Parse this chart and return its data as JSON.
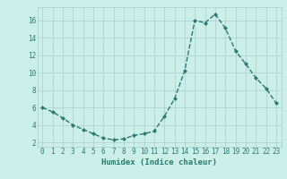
{
  "x": [
    0,
    1,
    2,
    3,
    4,
    5,
    6,
    7,
    8,
    9,
    10,
    11,
    12,
    13,
    14,
    15,
    16,
    17,
    18,
    19,
    20,
    21,
    22,
    23
  ],
  "y": [
    6.0,
    5.5,
    4.8,
    4.0,
    3.5,
    3.0,
    2.5,
    2.3,
    2.4,
    2.8,
    3.0,
    3.3,
    5.0,
    7.0,
    10.2,
    16.0,
    15.7,
    16.7,
    15.1,
    12.5,
    11.0,
    9.4,
    8.2,
    6.5
  ],
  "title": "",
  "xlabel": "Humidex (Indice chaleur)",
  "ylabel": "",
  "xlim": [
    -0.5,
    23.5
  ],
  "ylim": [
    1.5,
    17.5
  ],
  "yticks": [
    2,
    4,
    6,
    8,
    10,
    12,
    14,
    16
  ],
  "xticks": [
    0,
    1,
    2,
    3,
    4,
    5,
    6,
    7,
    8,
    9,
    10,
    11,
    12,
    13,
    14,
    15,
    16,
    17,
    18,
    19,
    20,
    21,
    22,
    23
  ],
  "line_color": "#2a7a6e",
  "marker": "D",
  "marker_size": 2.0,
  "bg_color": "#cceee8",
  "grid_color": "#aacccc",
  "font_color": "#2a7a6e",
  "xlabel_fontsize": 6.5,
  "tick_fontsize": 5.5,
  "linewidth": 1.0
}
